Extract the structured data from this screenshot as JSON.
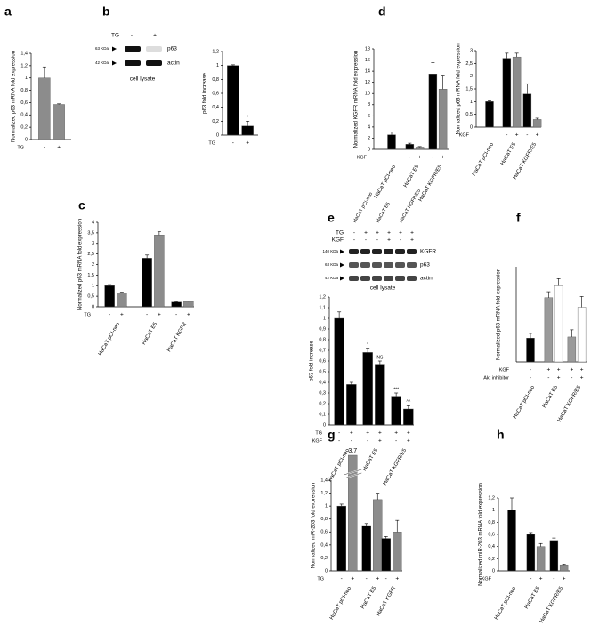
{
  "panels": [
    "a",
    "b",
    "c",
    "d",
    "e",
    "f",
    "g",
    "h"
  ],
  "blot_b": {
    "treatment": "TG",
    "lanes": [
      "-",
      "+"
    ],
    "bands": [
      {
        "size": "63 KDa",
        "label": "p63"
      },
      {
        "size": "42 KDa",
        "label": "actin"
      }
    ],
    "caption": "cell lysate"
  },
  "blot_e": {
    "lines": [
      "HaCaT pCI-neo",
      "HaCaT E5",
      "HaCaT KGFR/E5"
    ],
    "rows": [
      {
        "label": "TG",
        "values": [
          "-",
          "+",
          "+",
          "+",
          "+",
          "+"
        ]
      },
      {
        "label": "KGF",
        "values": [
          "-",
          "-",
          "-",
          "+",
          "-",
          "+"
        ]
      }
    ],
    "bands": [
      {
        "size": "140 KDa",
        "label": "KGFR"
      },
      {
        "size": "63 KDa",
        "label": "p63"
      },
      {
        "size": "42 KDa",
        "label": "actin"
      }
    ],
    "caption": "cell lysate"
  },
  "chart_data": [
    {
      "type": "bar",
      "ylabel": "Normalized p63 mRNA fold expression",
      "ylim": [
        0,
        1.4
      ],
      "yticks": [
        0,
        {
          "value": 0.2,
          "label": "0,2"
        },
        {
          "value": 0.4,
          "label": "0,4"
        },
        {
          "value": 0.6,
          "label": "0,6"
        },
        {
          "value": 0.8,
          "label": "0,8"
        },
        1,
        {
          "value": 1.2,
          "label": "1,2"
        },
        {
          "value": 1.4,
          "label": "1,4"
        }
      ],
      "categories": [
        null
      ],
      "series": [
        {
          "color": "#8c8c8c",
          "values": [
            1.0
          ],
          "errors": [
            0.18
          ]
        },
        {
          "color": "#8c8c8c",
          "values": [
            0.57
          ],
          "errors": [
            0.01
          ]
        }
      ],
      "rows": [
        {
          "label": "TG",
          "values": [
            "-",
            "+"
          ]
        }
      ]
    },
    {
      "type": "bar",
      "ylabel": "p63 fold increase",
      "ylim": [
        0,
        1.2
      ],
      "yticks": [
        0,
        {
          "value": 0.2,
          "label": "0,2"
        },
        {
          "value": 0.4,
          "label": "0,4"
        },
        {
          "value": 0.6,
          "label": "0,6"
        },
        {
          "value": 0.8,
          "label": "0,8"
        },
        1,
        {
          "value": 1.2,
          "label": "1,2"
        }
      ],
      "categories": [
        null
      ],
      "series": [
        {
          "color": "#000000",
          "values": [
            1.0
          ],
          "errors": [
            0.01
          ]
        },
        {
          "color": "#000000",
          "values": [
            0.13
          ],
          "errors": [
            0.07
          ],
          "annotations": [
            "*"
          ]
        }
      ],
      "rows": [
        {
          "label": "TG",
          "values": [
            "-",
            "+"
          ]
        }
      ]
    },
    {
      "type": "bar",
      "ylabel": "Normalized p63 mRNA fold expression",
      "ylim": [
        0,
        4
      ],
      "yticks": [
        0,
        {
          "value": 0.5,
          "label": "0,5"
        },
        1,
        {
          "value": 1.5,
          "label": "1,5"
        },
        2,
        {
          "value": 2.5,
          "label": "2,5"
        },
        3,
        {
          "value": 3.5,
          "label": "3,5"
        },
        4
      ],
      "categories": [
        "HaCaT pCI-neo",
        "HaCaT E5",
        "HaCaT KGFR"
      ],
      "series": [
        {
          "color": "#000000",
          "values": [
            1.0,
            2.3,
            0.22
          ],
          "errors": [
            0.05,
            0.15,
            0.03
          ]
        },
        {
          "color": "#8c8c8c",
          "values": [
            0.65,
            3.4,
            0.25
          ],
          "errors": [
            0.04,
            0.15,
            0.03
          ]
        }
      ],
      "rows": [
        {
          "label": "TG",
          "values": [
            "-",
            "+",
            "-",
            "+",
            "-",
            "+"
          ]
        }
      ]
    },
    {
      "type": "bar",
      "ylabel": "Normalized KGFR mRNA fold expression",
      "ylim": [
        0,
        18
      ],
      "yticks": [
        0,
        2,
        4,
        6,
        8,
        10,
        12,
        14,
        16,
        18
      ],
      "categories": [
        "HaCaT pCI-neo",
        "HaCaT E5",
        "HaCaT KGFR/E5"
      ],
      "series": [
        {
          "color": "#000000",
          "values": [
            2.6,
            0.9,
            13.5
          ],
          "errors": [
            0.5,
            0.2,
            2.0
          ]
        },
        {
          "color": "#8c8c8c",
          "values": [
            null,
            0.4,
            10.8
          ],
          "errors": [
            null,
            0.1,
            2.5
          ]
        }
      ],
      "rows": [
        {
          "label": "KGF",
          "values": [
            null,
            "-",
            "+",
            "-",
            "+"
          ]
        }
      ]
    },
    {
      "type": "bar",
      "ylabel": "Normalized p63 mRNA fold expression",
      "ylim": [
        0,
        3
      ],
      "yticks": [
        0,
        {
          "value": 0.5,
          "label": "0,5"
        },
        1,
        {
          "value": 1.5,
          "label": "1,5"
        },
        2,
        {
          "value": 2.5,
          "label": "2,5"
        },
        3
      ],
      "categories": [
        "HaCaT pCI-neo",
        "HaCaT E5",
        "HaCaT KGFR/E5"
      ],
      "series": [
        {
          "color": "#000000",
          "values": [
            1.0,
            2.7,
            1.3
          ],
          "errors": [
            0.03,
            0.2,
            0.4
          ]
        },
        {
          "color": "#8c8c8c",
          "values": [
            null,
            2.75,
            0.3
          ],
          "errors": [
            null,
            0.15,
            0.05
          ]
        }
      ],
      "rows": [
        {
          "label": "KGF",
          "values": [
            null,
            "-",
            "+",
            "-",
            "+"
          ]
        }
      ]
    },
    {
      "type": "bar",
      "ylabel": "p63 fold increase",
      "ylim": [
        0,
        1.2
      ],
      "yticks": [
        0,
        {
          "value": 0.1,
          "label": "0,1"
        },
        {
          "value": 0.2,
          "label": "0,2"
        },
        {
          "value": 0.3,
          "label": "0,3"
        },
        {
          "value": 0.4,
          "label": "0,4"
        },
        {
          "value": 0.5,
          "label": "0,5"
        },
        {
          "value": 0.6,
          "label": "0,6"
        },
        {
          "value": 0.7,
          "label": "0,7"
        },
        {
          "value": 0.8,
          "label": "0,8"
        },
        {
          "value": 0.9,
          "label": "0,9"
        },
        1,
        {
          "value": 1.1,
          "label": "1,1"
        },
        {
          "value": 1.2,
          "label": "1,2"
        }
      ],
      "categories": [
        "HaCaT pCI-neo",
        "HaCaT E5",
        "HaCaT KGFR/E5"
      ],
      "series": [
        {
          "color": "#000000",
          "values": [
            1.0,
            0.68,
            0.27
          ],
          "errors": [
            0.06,
            0.04,
            0.03
          ],
          "annotations": [
            null,
            "*",
            "***"
          ]
        },
        {
          "color": "#000000",
          "values": [
            0.38,
            0.57,
            0.15
          ],
          "errors": [
            0.02,
            0.03,
            0.03
          ],
          "annotations": [
            null,
            "NS",
            "^^"
          ]
        }
      ],
      "rows": [
        {
          "label": "TG",
          "values": [
            "-",
            "+",
            "+",
            "+",
            "+",
            "+"
          ]
        },
        {
          "label": "KGF",
          "values": [
            "-",
            "-",
            "-",
            "+",
            "-",
            "+"
          ]
        }
      ]
    },
    {
      "type": "bar",
      "ylabel": "Normalized p63 mRNA fold expression",
      "ylim": [
        0,
        4
      ],
      "categories": [
        "HaCaT pCI-neo",
        "HaCaT E5",
        "HaCaT KGFR/E5"
      ],
      "series": [
        {
          "color": "#000000",
          "values": [
            1.0,
            null,
            null
          ],
          "errors": [
            0.2,
            null,
            null
          ]
        },
        {
          "color": "#9a9a9a",
          "values": [
            null,
            2.7,
            1.05
          ],
          "errors": [
            null,
            0.25,
            0.3
          ]
        },
        {
          "color": "#ffffff",
          "values": [
            null,
            3.2,
            2.3
          ],
          "errors": [
            null,
            0.3,
            0.45
          ]
        }
      ],
      "rows": [
        {
          "label": "KGF",
          "values": [
            "-",
            "+",
            "+",
            "+",
            "+"
          ]
        },
        {
          "label": "Akt inhibitor",
          "values": [
            "-",
            "-",
            "+",
            "-",
            "+"
          ]
        }
      ]
    },
    {
      "type": "bar",
      "ylabel": "Normalized miR-203 fold expression",
      "ylim": [
        0,
        1.4
      ],
      "yticks": [
        0,
        {
          "value": 0.2,
          "label": "0,2"
        },
        {
          "value": 0.4,
          "label": "0,4"
        },
        {
          "value": 0.6,
          "label": "0,6"
        },
        {
          "value": 0.8,
          "label": "0,8"
        },
        1,
        {
          "value": 1.2,
          "label": "1,2"
        },
        {
          "value": 1.4,
          "label": "1,4"
        }
      ],
      "categories": [
        "HaCaT pCI-neo",
        "HaCaT E5",
        "HaCaT KGFR"
      ],
      "series": [
        {
          "color": "#000000",
          "values": [
            1.0,
            0.7,
            0.5
          ],
          "errors": [
            0.03,
            0.03,
            0.03
          ]
        },
        {
          "color": "#8c8c8c",
          "values": [
            3.7,
            1.1,
            0.6
          ],
          "value_labels": [
            "3,7",
            null,
            null
          ],
          "errors": [
            null,
            0.1,
            0.18
          ]
        }
      ],
      "rows": [
        {
          "label": "TG",
          "values": [
            "-",
            "+",
            "-",
            "+",
            "-",
            "+"
          ]
        }
      ]
    },
    {
      "type": "bar",
      "ylabel": "Normalized miR-203 mRNA fold expression",
      "ylim": [
        0,
        1.2
      ],
      "yticks": [
        0,
        {
          "value": 0.2,
          "label": "0,2"
        },
        {
          "value": 0.4,
          "label": "0,4"
        },
        {
          "value": 0.6,
          "label": "0,6"
        },
        {
          "value": 0.8,
          "label": "0,8"
        },
        1,
        {
          "value": 1.2,
          "label": "1,2"
        }
      ],
      "categories": [
        "HaCaT pCI-neo",
        "HaCaT E5",
        "HaCaT KGFR/E5"
      ],
      "series": [
        {
          "color": "#000000",
          "values": [
            1.0,
            0.6,
            0.5
          ],
          "errors": [
            0.2,
            0.03,
            0.04
          ]
        },
        {
          "color": "#8c8c8c",
          "values": [
            null,
            0.4,
            0.1
          ],
          "errors": [
            null,
            0.05,
            0.01
          ]
        }
      ],
      "rows": [
        {
          "label": "KGF",
          "values": [
            null,
            "-",
            "+",
            "-",
            "+"
          ]
        }
      ]
    }
  ]
}
